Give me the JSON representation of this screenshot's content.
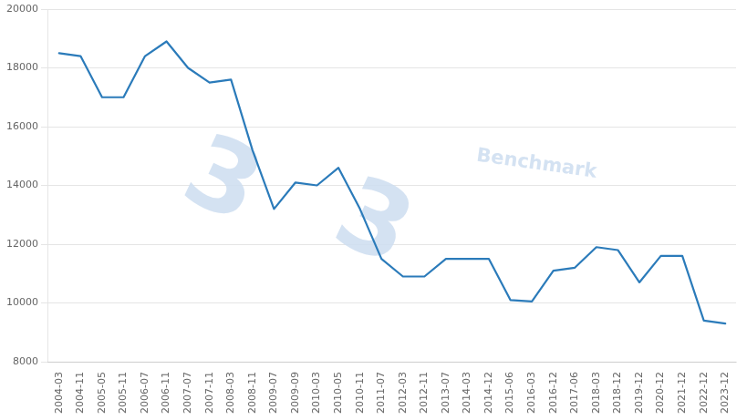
{
  "chart_data": {
    "type": "line",
    "categories": [
      "2004-03",
      "2004-11",
      "2005-05",
      "2005-11",
      "2006-07",
      "2006-11",
      "2007-07",
      "2007-11",
      "2008-03",
      "2008-11",
      "2009-07",
      "2009-09",
      "2010-03",
      "2010-05",
      "2010-11",
      "2011-07",
      "2012-03",
      "2012-11",
      "2013-07",
      "2014-03",
      "2014-12",
      "2015-06",
      "2016-03",
      "2016-12",
      "2017-06",
      "2018-03",
      "2018-12",
      "2019-12",
      "2020-12",
      "2021-12",
      "2022-12",
      "2023-12"
    ],
    "values": [
      18500,
      18400,
      17000,
      17000,
      18400,
      18900,
      18000,
      17500,
      17600,
      15200,
      13200,
      14100,
      14000,
      14600,
      13200,
      11500,
      10900,
      10900,
      11500,
      11500,
      11500,
      10100,
      10050,
      11100,
      11200,
      11900,
      11800,
      10700,
      11600,
      11600,
      9400,
      9300
    ],
    "color": "#2b7bba",
    "ylim": [
      8000,
      20000
    ],
    "yticks": [
      8000,
      10000,
      12000,
      14000,
      16000,
      18000,
      20000
    ],
    "grid": true,
    "annotations": [
      "3",
      "3",
      "Benchmark"
    ]
  }
}
